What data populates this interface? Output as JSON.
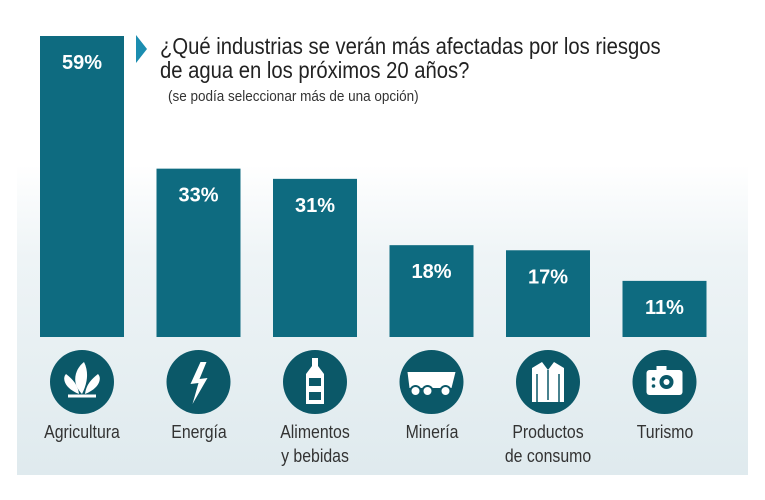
{
  "chart_data": {
    "type": "bar",
    "title": "¿Qué industrias se verán más afectadas por los riesgos de agua en los próximos 20 años?",
    "subtitle": "(se podía seleccionar más de una opción)",
    "categories": [
      "Agricultura",
      "Energía",
      "Alimentos y bebidas",
      "Minería",
      "Productos de consumo",
      "Turismo"
    ],
    "category_lines": [
      [
        "Agricultura"
      ],
      [
        "Energía"
      ],
      [
        "Alimentos",
        "y bebidas"
      ],
      [
        "Minería"
      ],
      [
        "Productos",
        "de consumo"
      ],
      [
        "Turismo"
      ]
    ],
    "values": [
      59,
      33,
      31,
      18,
      17,
      11
    ],
    "data_labels": [
      "59%",
      "33%",
      "31%",
      "18%",
      "17%",
      "11%"
    ],
    "icons": [
      "plant-icon",
      "lightning-icon",
      "bottle-icon",
      "mining-truck-icon",
      "shirt-icon",
      "camera-icon"
    ],
    "ylim": [
      0,
      59
    ],
    "grid": false,
    "colors": {
      "bar": "#0e6b80",
      "icon": "#0b5868",
      "arrow": "#1b8db0"
    }
  }
}
